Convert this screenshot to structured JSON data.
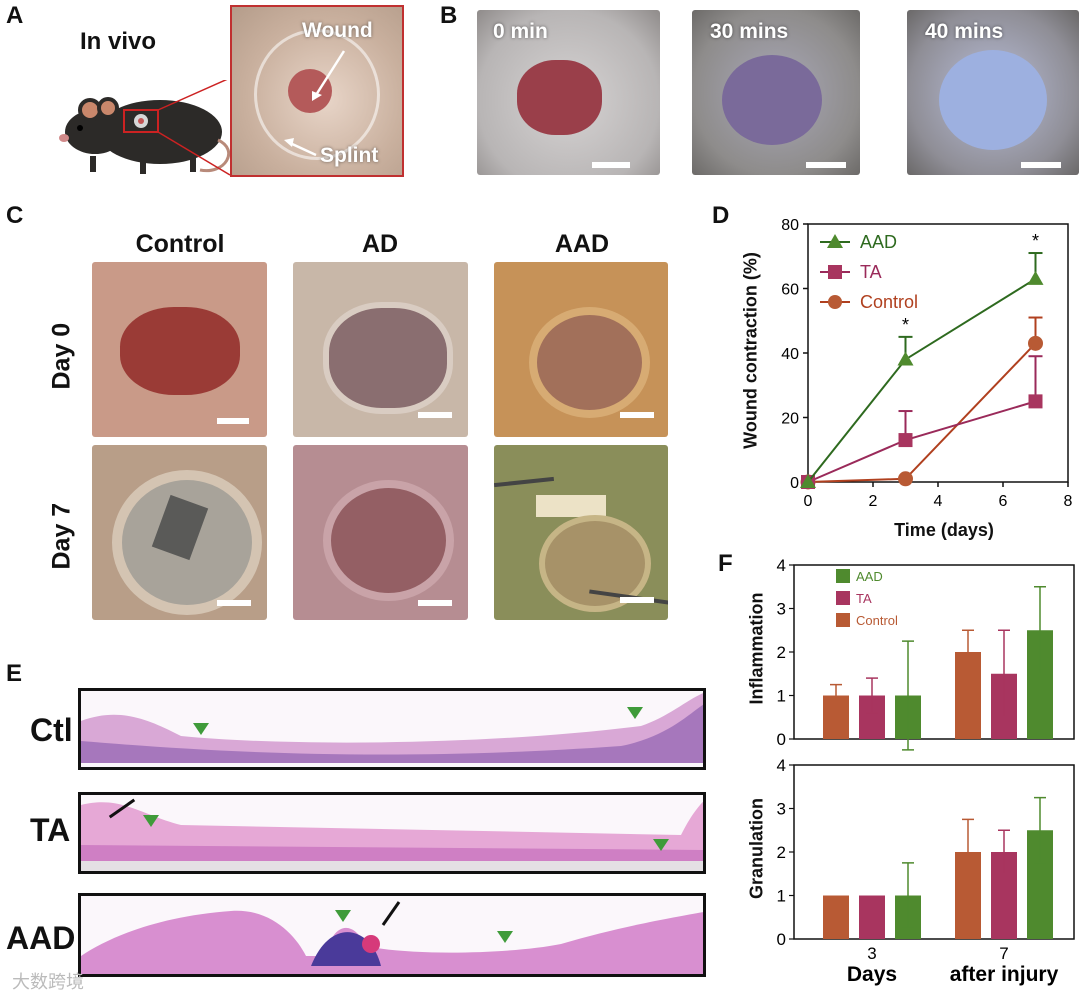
{
  "panels": {
    "a": {
      "label": "A",
      "title": "In vivo",
      "wound": "Wound",
      "splint": "Splint"
    },
    "b": {
      "label": "B",
      "times": [
        "0 min",
        "30 mins",
        "40 mins"
      ]
    },
    "c": {
      "label": "C",
      "columns": [
        "Control",
        "AD",
        "AAD"
      ],
      "rows": [
        "Day 0",
        "Day 7"
      ]
    },
    "d": {
      "label": "D"
    },
    "e": {
      "label": "E",
      "rows": [
        "Ctl",
        "TA",
        "AAD"
      ]
    },
    "f": {
      "label": "F"
    }
  },
  "watermark": "大数跨境",
  "colors": {
    "aad": "#4f8a2e",
    "ta": "#a8355f",
    "control": "#b85a34",
    "line_aad": "#2e6a1f",
    "line_ta": "#9a2a5a",
    "line_control": "#b0401f"
  },
  "chart_data": [
    {
      "type": "line",
      "title": "",
      "xlabel": "Time (days)",
      "ylabel": "Wound contraction (%)",
      "xlim": [
        0,
        8
      ],
      "ylim": [
        0,
        80
      ],
      "xticks": [
        "0",
        "2",
        "4",
        "6",
        "8"
      ],
      "yticks": [
        "0",
        "20",
        "40",
        "60",
        "80"
      ],
      "x": [
        0,
        3,
        7
      ],
      "series": [
        {
          "name": "AAD",
          "values": [
            0,
            38,
            63
          ],
          "errors": [
            0,
            7,
            8
          ],
          "marker": "triangle"
        },
        {
          "name": "TA",
          "values": [
            0,
            13,
            25
          ],
          "errors": [
            0,
            9,
            14
          ],
          "marker": "square"
        },
        {
          "name": "Control",
          "values": [
            0,
            1,
            43
          ],
          "errors": [
            0,
            0,
            8
          ],
          "marker": "circle"
        }
      ],
      "annotations": [
        {
          "x": 3,
          "text": "*"
        },
        {
          "x": 7,
          "text": "*"
        }
      ],
      "legend": "top-left"
    },
    {
      "type": "bar",
      "title": "",
      "ylabel": "Inflammation",
      "ylim": [
        0,
        4
      ],
      "yticks": [
        "0",
        "1",
        "2",
        "3",
        "4"
      ],
      "categories": [
        "3",
        "7"
      ],
      "series": [
        {
          "name": "Control",
          "values": [
            1.0,
            2.0
          ],
          "errors": [
            0.25,
            0.5
          ]
        },
        {
          "name": "TA",
          "values": [
            1.0,
            1.5
          ],
          "errors": [
            0.4,
            1.0
          ]
        },
        {
          "name": "AAD",
          "values": [
            1.0,
            2.5
          ],
          "errors": [
            1.25,
            1.0
          ]
        }
      ],
      "legend": "top-left",
      "legend_order": [
        "AAD",
        "TA",
        "Control"
      ]
    },
    {
      "type": "bar",
      "title": "",
      "ylabel": "Granulation",
      "xlabel_parts": [
        "Days",
        "after injury"
      ],
      "ylim": [
        0,
        4
      ],
      "yticks": [
        "0",
        "1",
        "2",
        "3",
        "4"
      ],
      "categories": [
        "3",
        "7"
      ],
      "series": [
        {
          "name": "Control",
          "values": [
            1.0,
            2.0
          ],
          "errors": [
            0,
            0.75
          ]
        },
        {
          "name": "TA",
          "values": [
            1.0,
            2.0
          ],
          "errors": [
            0,
            0.5
          ]
        },
        {
          "name": "AAD",
          "values": [
            1.0,
            2.5
          ],
          "errors": [
            0.75,
            0.75
          ]
        }
      ]
    }
  ]
}
